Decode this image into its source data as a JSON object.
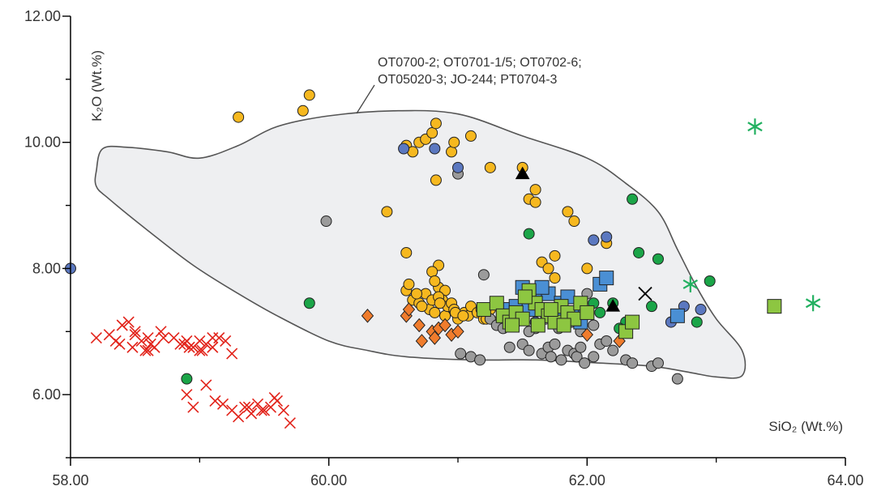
{
  "chart_data": {
    "type": "scatter",
    "title": "",
    "xlabel": "SiO₂ (Wt.%)",
    "ylabel": "K₂O (Wt.%)",
    "xlim": [
      58,
      64
    ],
    "ylim": [
      5,
      12
    ],
    "x_ticks": [
      "58.00",
      "60.00",
      "62.00",
      "64.00"
    ],
    "y_ticks": [
      "6.00",
      "8.00",
      "10.00",
      "12.00"
    ],
    "grid": false,
    "legend": "none",
    "annotation": {
      "lines": [
        "OT0700-2; OT0701-1/5; OT0702-6;",
        "OT05020-3; JO-244; PT0704-3"
      ]
    },
    "field_outline": [
      [
        58.2,
        9.55
      ],
      [
        58.25,
        9.9
      ],
      [
        58.45,
        9.92
      ],
      [
        58.75,
        9.85
      ],
      [
        59.0,
        9.75
      ],
      [
        59.3,
        9.95
      ],
      [
        59.6,
        10.25
      ],
      [
        60.0,
        10.42
      ],
      [
        60.5,
        10.5
      ],
      [
        61.0,
        10.45
      ],
      [
        61.5,
        10.1
      ],
      [
        62.0,
        9.75
      ],
      [
        62.3,
        9.35
      ],
      [
        62.55,
        8.9
      ],
      [
        62.7,
        8.3
      ],
      [
        62.85,
        7.7
      ],
      [
        63.0,
        7.2
      ],
      [
        63.2,
        6.7
      ],
      [
        63.2,
        6.3
      ],
      [
        63.0,
        6.28
      ],
      [
        62.8,
        6.35
      ],
      [
        62.5,
        6.45
      ],
      [
        62.1,
        6.5
      ],
      [
        61.6,
        6.55
      ],
      [
        61.1,
        6.55
      ],
      [
        60.6,
        6.6
      ],
      [
        60.3,
        6.7
      ],
      [
        60.0,
        6.85
      ],
      [
        59.6,
        7.25
      ],
      [
        59.3,
        7.6
      ],
      [
        58.95,
        8.05
      ],
      [
        58.6,
        8.6
      ],
      [
        58.3,
        9.1
      ],
      [
        58.2,
        9.3
      ]
    ],
    "series": [
      {
        "marker": "circle",
        "color": "#F6B81F",
        "x": [
          59.3,
          59.8,
          59.85,
          60.45,
          60.6,
          60.65,
          60.7,
          60.75,
          60.8,
          60.83,
          60.83,
          60.95,
          60.97,
          61.1,
          61.25,
          61.5,
          61.55,
          61.6,
          61.6,
          61.65,
          61.7,
          61.75,
          61.75,
          61.85,
          61.9,
          62.0,
          62.15,
          60.85,
          60.6,
          60.8,
          60.85,
          60.82,
          60.9,
          60.88,
          60.95,
          60.6,
          60.65,
          60.7,
          60.75,
          60.78,
          60.8,
          60.82,
          60.85,
          60.9,
          60.92,
          60.95,
          60.97,
          61.0,
          61.05,
          61.08,
          61.1,
          61.15,
          61.2,
          61.25,
          61.3,
          60.62,
          60.68,
          60.72,
          60.86,
          60.98,
          61.04,
          61.18,
          61.22,
          61.35
        ],
        "y": [
          10.4,
          10.5,
          10.75,
          8.9,
          9.95,
          9.85,
          10.0,
          10.05,
          10.15,
          9.4,
          10.3,
          9.85,
          10.0,
          10.1,
          9.6,
          9.6,
          9.1,
          9.05,
          9.25,
          8.1,
          8.0,
          8.2,
          7.85,
          8.9,
          8.75,
          8.0,
          8.4,
          8.05,
          8.25,
          7.95,
          7.7,
          7.8,
          7.65,
          7.5,
          7.4,
          7.65,
          7.5,
          7.45,
          7.6,
          7.35,
          7.5,
          7.3,
          7.55,
          7.25,
          7.4,
          7.45,
          7.35,
          7.2,
          7.3,
          7.25,
          7.4,
          7.3,
          7.2,
          7.35,
          7.15,
          7.75,
          7.6,
          7.4,
          7.45,
          7.3,
          7.25,
          7.35,
          7.2,
          7.1
        ]
      },
      {
        "marker": "circle",
        "color": "#9B9B9B",
        "x": [
          59.98,
          61.0,
          61.02,
          61.1,
          61.17,
          61.2,
          61.25,
          61.3,
          61.4,
          61.5,
          61.55,
          61.6,
          61.65,
          61.7,
          61.72,
          61.75,
          61.8,
          61.82,
          61.85,
          61.9,
          61.92,
          61.95,
          61.98,
          62.0,
          62.05,
          62.1,
          62.15,
          62.2,
          62.3,
          62.35,
          62.5,
          62.55,
          62.7,
          61.35,
          61.45,
          61.55,
          61.62,
          61.68,
          61.78,
          61.88,
          61.95,
          62.05
        ],
        "y": [
          8.75,
          9.5,
          6.65,
          6.6,
          6.55,
          7.9,
          7.2,
          7.1,
          6.75,
          6.8,
          6.7,
          7.05,
          6.65,
          6.75,
          6.6,
          6.8,
          6.55,
          7.2,
          6.7,
          6.65,
          6.6,
          6.75,
          6.5,
          7.6,
          6.6,
          6.8,
          6.85,
          6.7,
          6.55,
          6.5,
          6.45,
          6.5,
          6.25,
          7.05,
          7.15,
          7.0,
          7.1,
          7.2,
          7.05,
          7.15,
          7.0,
          7.1
        ]
      },
      {
        "marker": "circle",
        "color": "#5B78C0",
        "x": [
          58.0,
          60.58,
          60.82,
          61.0,
          62.05,
          62.15,
          62.65,
          62.75,
          62.88,
          61.6
        ],
        "y": [
          8.0,
          9.9,
          9.9,
          9.6,
          8.45,
          8.5,
          7.15,
          7.4,
          7.35,
          7.15
        ]
      },
      {
        "marker": "circle",
        "color": "#1BA548",
        "x": [
          58.9,
          59.85,
          61.55,
          62.05,
          62.2,
          62.3,
          62.35,
          62.4,
          62.5,
          62.55,
          62.85,
          62.95,
          62.1,
          62.25
        ],
        "y": [
          6.25,
          7.45,
          8.55,
          7.45,
          7.45,
          7.15,
          9.1,
          8.25,
          7.4,
          8.15,
          7.15,
          7.8,
          7.3,
          7.05
        ],
        "display_positions_note": ""
      },
      {
        "marker": "diamond",
        "color": "#F07C2C",
        "x": [
          60.3,
          60.6,
          60.62,
          60.7,
          60.72,
          60.8,
          60.82,
          60.85,
          60.9,
          60.95,
          61.0,
          62.0,
          62.25
        ],
        "y": [
          7.25,
          7.25,
          7.35,
          7.1,
          6.85,
          7.0,
          6.9,
          7.05,
          7.1,
          6.95,
          7.0,
          6.95,
          6.85
        ]
      },
      {
        "marker": "square",
        "color": "#4A8FD4",
        "x": [
          61.35,
          61.45,
          61.5,
          61.55,
          61.6,
          61.7,
          61.75,
          61.8,
          61.85,
          61.9,
          61.95,
          62.1,
          62.15,
          62.7,
          61.65,
          61.78,
          61.88
        ],
        "y": [
          7.35,
          7.4,
          7.7,
          7.35,
          7.5,
          7.6,
          7.2,
          7.45,
          7.55,
          7.3,
          7.15,
          7.75,
          7.85,
          7.25,
          7.7,
          7.35,
          7.25
        ]
      },
      {
        "marker": "square",
        "color": "#8DC641",
        "x": [
          61.2,
          61.3,
          61.35,
          61.4,
          61.45,
          61.5,
          61.55,
          61.6,
          61.65,
          61.7,
          61.75,
          61.8,
          61.85,
          61.9,
          61.95,
          62.0,
          62.3,
          62.35,
          63.45,
          61.52,
          61.62,
          61.72,
          61.82,
          61.42
        ],
        "y": [
          7.35,
          7.45,
          7.25,
          7.15,
          7.3,
          7.2,
          7.65,
          7.45,
          7.35,
          7.25,
          7.15,
          7.4,
          7.3,
          7.2,
          7.45,
          7.3,
          7.0,
          7.15,
          7.4,
          7.55,
          7.1,
          7.35,
          7.1,
          7.1
        ]
      },
      {
        "marker": "triangle",
        "color": "#000000",
        "x": [
          61.5,
          62.2
        ],
        "y": [
          9.5,
          7.4
        ]
      },
      {
        "marker": "x",
        "color": "#000000",
        "x": [
          62.45
        ],
        "y": [
          7.6
        ]
      },
      {
        "marker": "asterisk",
        "color": "#22B060",
        "x": [
          62.8,
          63.3,
          63.75
        ],
        "y": [
          7.75,
          10.25,
          7.45
        ]
      },
      {
        "marker": "x",
        "color": "#E2231A",
        "x": [
          58.2,
          58.3,
          58.35,
          58.4,
          58.45,
          58.5,
          58.55,
          58.6,
          58.65,
          58.7,
          58.8,
          58.85,
          58.9,
          58.95,
          59.0,
          59.05,
          59.1,
          59.2,
          59.25,
          58.38,
          58.48,
          58.58,
          58.62,
          58.72,
          58.88,
          58.92,
          59.0,
          59.02,
          59.1,
          59.15,
          58.9,
          58.95,
          59.05,
          59.12,
          59.18,
          59.25,
          59.35,
          59.4,
          59.45,
          59.5,
          59.55,
          59.6,
          59.65,
          59.7,
          59.3,
          59.38,
          59.48,
          59.58,
          58.5,
          58.6
        ],
        "y": [
          6.9,
          6.95,
          6.85,
          7.1,
          7.15,
          6.95,
          6.85,
          6.9,
          6.75,
          7.0,
          6.9,
          6.8,
          6.85,
          6.75,
          6.7,
          6.8,
          6.9,
          6.85,
          6.65,
          6.8,
          6.75,
          6.7,
          6.8,
          6.9,
          6.8,
          6.75,
          6.85,
          6.7,
          6.75,
          6.9,
          6.0,
          5.8,
          6.15,
          5.9,
          5.85,
          5.75,
          5.8,
          5.7,
          5.85,
          5.75,
          5.8,
          5.9,
          5.75,
          5.55,
          5.65,
          5.8,
          5.75,
          5.95,
          7.0,
          6.7
        ]
      }
    ]
  }
}
